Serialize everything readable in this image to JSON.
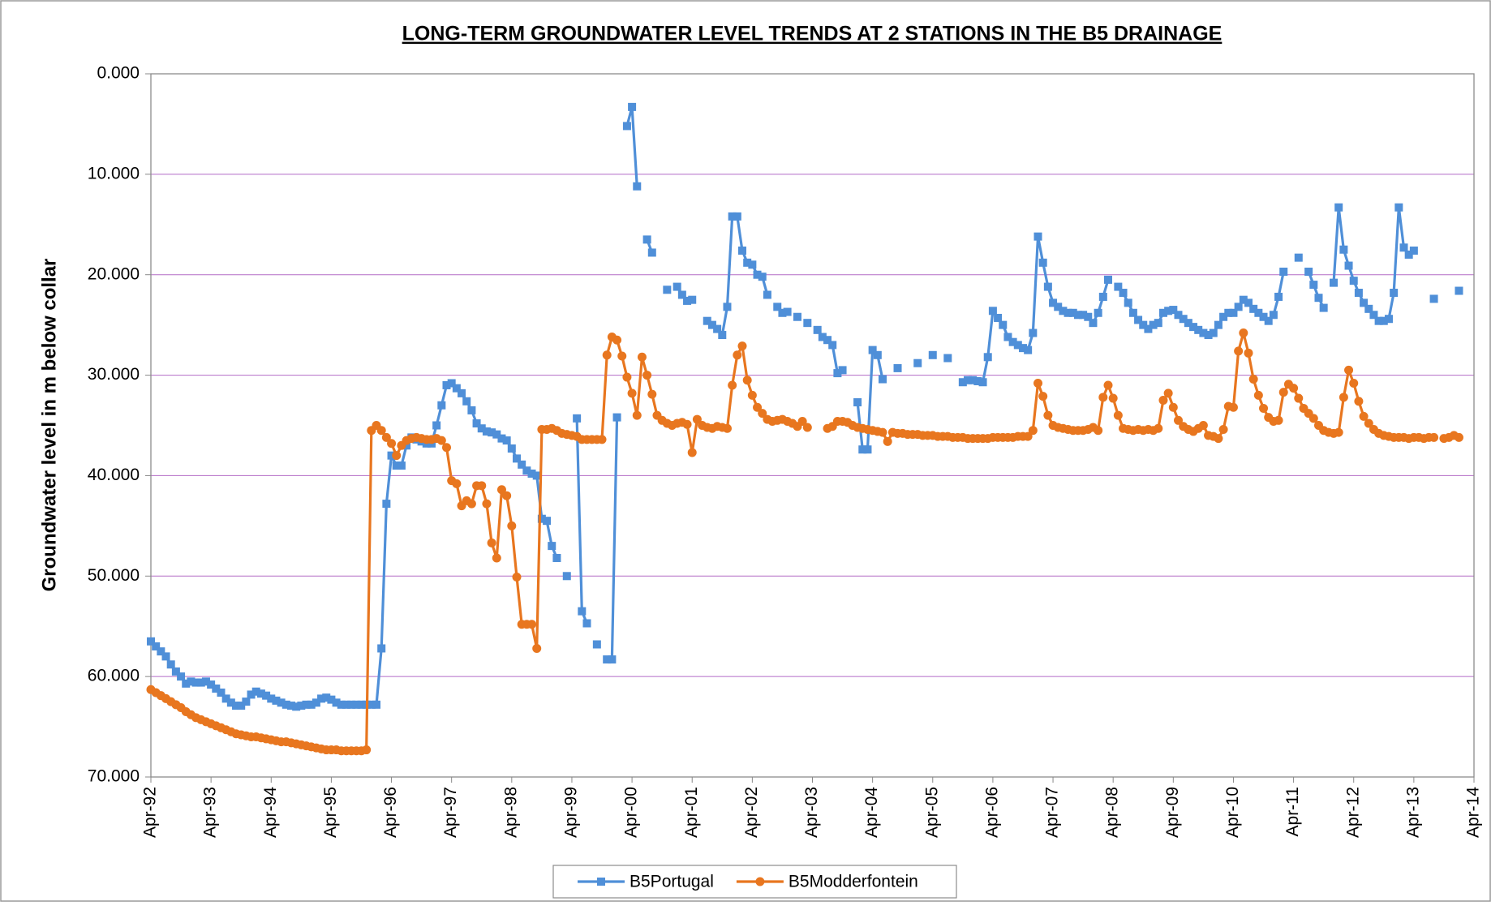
{
  "chart_data": {
    "type": "line",
    "title": "LONG-TERM GROUNDWATER LEVEL TRENDS AT 2 STATIONS IN THE B5 DRAINAGE",
    "y_label": "Groundwater level in m below collar",
    "x": [
      "1992-04",
      "1992-05",
      "1992-06",
      "1992-07",
      "1992-08",
      "1992-09",
      "1992-10",
      "1992-11",
      "1992-12",
      "1993-01",
      "1993-02",
      "1993-03",
      "1993-04",
      "1993-05",
      "1993-06",
      "1993-07",
      "1993-08",
      "1993-09",
      "1993-10",
      "1993-11",
      "1993-12",
      "1994-01",
      "1994-02",
      "1994-03",
      "1994-04",
      "1994-05",
      "1994-06",
      "1994-07",
      "1994-08",
      "1994-09",
      "1994-10",
      "1994-11",
      "1994-12",
      "1995-01",
      "1995-02",
      "1995-03",
      "1995-04",
      "1995-05",
      "1995-06",
      "1995-07",
      "1995-08",
      "1995-09",
      "1995-10",
      "1995-11",
      "1995-12",
      "1996-01",
      "1996-02",
      "1996-03",
      "1996-04",
      "1996-05",
      "1996-06",
      "1996-07",
      "1996-08",
      "1996-09",
      "1996-10",
      "1996-11",
      "1996-12",
      "1997-01",
      "1997-02",
      "1997-03",
      "1997-04",
      "1997-05",
      "1997-06",
      "1997-07",
      "1997-08",
      "1997-09",
      "1997-10",
      "1997-11",
      "1997-12",
      "1998-01",
      "1998-02",
      "1998-03",
      "1998-04",
      "1998-05",
      "1998-06",
      "1998-07",
      "1998-08",
      "1998-09",
      "1998-10",
      "1998-11",
      "1998-12",
      "1999-01",
      "1999-02",
      "1999-03",
      "1999-04",
      "1999-05",
      "1999-06",
      "1999-07",
      "1999-08",
      "1999-09",
      "1999-10",
      "1999-11",
      "1999-12",
      "2000-01",
      "2000-02",
      "2000-03",
      "2000-04",
      "2000-05",
      "2000-06",
      "2000-07",
      "2000-08",
      "2000-09",
      "2000-10",
      "2000-11",
      "2000-12",
      "2001-01",
      "2001-02",
      "2001-03",
      "2001-04",
      "2001-05",
      "2001-06",
      "2001-07",
      "2001-08",
      "2001-09",
      "2001-10",
      "2001-11",
      "2001-12",
      "2002-01",
      "2002-02",
      "2002-03",
      "2002-04",
      "2002-05",
      "2002-06",
      "2002-07",
      "2002-08",
      "2002-09",
      "2002-10",
      "2002-11",
      "2002-12",
      "2003-01",
      "2003-02",
      "2003-03",
      "2003-04",
      "2003-05",
      "2003-06",
      "2003-07",
      "2003-08",
      "2003-09",
      "2003-10",
      "2003-11",
      "2003-12",
      "2004-01",
      "2004-02",
      "2004-03",
      "2004-04",
      "2004-05",
      "2004-06",
      "2004-07",
      "2004-08",
      "2004-09",
      "2004-10",
      "2004-11",
      "2004-12",
      "2005-01",
      "2005-02",
      "2005-03",
      "2005-04",
      "2005-05",
      "2005-06",
      "2005-07",
      "2005-08",
      "2005-09",
      "2005-10",
      "2005-11",
      "2005-12",
      "2006-01",
      "2006-02",
      "2006-03",
      "2006-04",
      "2006-05",
      "2006-06",
      "2006-07",
      "2006-08",
      "2006-09",
      "2006-10",
      "2006-11",
      "2006-12",
      "2007-01",
      "2007-02",
      "2007-03",
      "2007-04",
      "2007-05",
      "2007-06",
      "2007-07",
      "2007-08",
      "2007-09",
      "2007-10",
      "2007-11",
      "2007-12",
      "2008-01",
      "2008-02",
      "2008-03",
      "2008-04",
      "2008-05",
      "2008-06",
      "2008-07",
      "2008-08",
      "2008-09",
      "2008-10",
      "2008-11",
      "2008-12",
      "2009-01",
      "2009-02",
      "2009-03",
      "2009-04",
      "2009-05",
      "2009-06",
      "2009-07",
      "2009-08",
      "2009-09",
      "2009-10",
      "2009-11",
      "2009-12",
      "2010-01",
      "2010-02",
      "2010-03",
      "2010-04",
      "2010-05",
      "2010-06",
      "2010-07",
      "2010-08",
      "2010-09",
      "2010-10",
      "2010-11",
      "2010-12",
      "2011-01",
      "2011-02",
      "2011-03",
      "2011-04",
      "2011-05",
      "2011-06",
      "2011-07",
      "2011-08",
      "2011-09",
      "2011-10",
      "2011-11",
      "2011-12",
      "2012-01",
      "2012-02",
      "2012-03",
      "2012-04",
      "2012-05",
      "2012-06",
      "2012-07",
      "2012-08",
      "2012-09",
      "2012-10",
      "2012-11",
      "2012-12",
      "2013-01",
      "2013-02",
      "2013-03",
      "2013-04",
      "2013-05",
      "2013-06",
      "2013-07",
      "2013-08",
      "2013-09",
      "2013-10",
      "2013-11",
      "2013-12",
      "2014-01"
    ],
    "series": [
      {
        "name": "B5Portugal",
        "color": "#4f8fd8",
        "marker": "square",
        "values": [
          56.5,
          57,
          57.5,
          58,
          58.8,
          59.5,
          60,
          60.7,
          60.5,
          60.6,
          60.6,
          60.5,
          60.8,
          61.2,
          61.6,
          62.2,
          62.6,
          62.9,
          62.9,
          62.5,
          61.8,
          61.5,
          61.7,
          61.9,
          62.2,
          62.4,
          62.6,
          62.8,
          62.9,
          63,
          62.9,
          62.8,
          62.8,
          62.6,
          62.2,
          62.1,
          62.3,
          62.6,
          62.8,
          62.8,
          62.8,
          62.8,
          62.8,
          62.8,
          62.8,
          62.8,
          57.2,
          42.8,
          38,
          39,
          39,
          37,
          36.2,
          36.4,
          36.6,
          36.8,
          36.8,
          35,
          33,
          31,
          30.8,
          31.3,
          31.8,
          32.6,
          33.5,
          34.8,
          35.3,
          35.6,
          35.7,
          35.9,
          36.3,
          36.5,
          37.3,
          38.3,
          38.9,
          39.5,
          39.8,
          40,
          44.3,
          44.5,
          47,
          48.2,
          null,
          50,
          null,
          34.3,
          53.5,
          54.7,
          null,
          56.8,
          null,
          58.3,
          58.3,
          34.2,
          null,
          5.2,
          3.3,
          11.2,
          null,
          16.5,
          17.8,
          null,
          null,
          21.5,
          null,
          21.2,
          22,
          22.6,
          22.5,
          null,
          null,
          24.6,
          25,
          25.4,
          26,
          23.2,
          14.2,
          14.2,
          17.6,
          18.8,
          19,
          20,
          20.2,
          22,
          null,
          23.2,
          23.8,
          23.7,
          null,
          24.2,
          null,
          24.8,
          null,
          25.5,
          26.2,
          26.5,
          27,
          29.8,
          29.5,
          null,
          null,
          32.7,
          37.4,
          37.4,
          27.5,
          28,
          30.4,
          null,
          null,
          29.3,
          null,
          null,
          null,
          28.8,
          null,
          null,
          28,
          null,
          null,
          28.3,
          null,
          null,
          30.7,
          30.5,
          30.5,
          30.6,
          30.7,
          28.2,
          23.6,
          24.3,
          25,
          26.2,
          26.7,
          27,
          27.3,
          27.5,
          25.8,
          16.2,
          18.8,
          21.2,
          22.8,
          23.2,
          23.6,
          23.8,
          23.8,
          24,
          24,
          24.2,
          24.8,
          23.8,
          22.2,
          20.5,
          null,
          21.2,
          21.8,
          22.8,
          23.8,
          24.5,
          25,
          25.4,
          25,
          24.8,
          23.8,
          23.6,
          23.5,
          24,
          24.4,
          24.8,
          25.2,
          25.5,
          25.8,
          26,
          25.8,
          25,
          24.2,
          23.8,
          23.8,
          23.2,
          22.5,
          22.8,
          23.4,
          23.8,
          24.2,
          24.6,
          24,
          22.2,
          19.7,
          null,
          null,
          18.3,
          null,
          19.7,
          21,
          22.3,
          23.3,
          null,
          20.8,
          13.3,
          17.5,
          19.1,
          20.6,
          21.8,
          22.8,
          23.4,
          24,
          24.6,
          24.6,
          24.4,
          21.8,
          13.3,
          17.3,
          18,
          17.6,
          null,
          null,
          null,
          22.4,
          null,
          null,
          null,
          null,
          21.6
        ]
      },
      {
        "name": "B5Modderfontein",
        "color": "#e8761f",
        "marker": "circle",
        "values": [
          61.3,
          61.6,
          61.9,
          62.2,
          62.5,
          62.8,
          63.1,
          63.5,
          63.8,
          64.1,
          64.3,
          64.5,
          64.7,
          64.9,
          65.1,
          65.3,
          65.5,
          65.7,
          65.8,
          65.9,
          66,
          66,
          66.1,
          66.2,
          66.3,
          66.4,
          66.5,
          66.5,
          66.6,
          66.7,
          66.8,
          66.9,
          67,
          67.1,
          67.2,
          67.3,
          67.3,
          67.3,
          67.4,
          67.4,
          67.4,
          67.4,
          67.4,
          67.3,
          35.5,
          35,
          35.5,
          36.2,
          36.8,
          38,
          37,
          36.5,
          36.3,
          36.2,
          36.3,
          36.4,
          36.4,
          36.3,
          36.5,
          37.2,
          40.5,
          40.8,
          43,
          42.5,
          42.8,
          41,
          41,
          42.8,
          46.7,
          48.2,
          41.4,
          42,
          45,
          50.1,
          54.8,
          54.8,
          54.8,
          57.2,
          35.4,
          35.4,
          35.3,
          35.5,
          35.8,
          35.9,
          36,
          36.1,
          36.4,
          36.4,
          36.4,
          36.4,
          36.4,
          28,
          26.2,
          26.5,
          28.1,
          30.2,
          31.8,
          34,
          28.2,
          30,
          31.9,
          34,
          34.5,
          34.8,
          35,
          34.8,
          34.7,
          34.9,
          37.7,
          34.4,
          35,
          35.2,
          35.3,
          35.1,
          35.2,
          35.3,
          31,
          28,
          27.1,
          30.5,
          32,
          33.2,
          33.8,
          34.4,
          34.6,
          34.5,
          34.4,
          34.6,
          34.8,
          35.1,
          34.6,
          35.2,
          null,
          null,
          null,
          35.3,
          35.1,
          34.6,
          34.6,
          34.7,
          35,
          35.2,
          35.3,
          35.4,
          35.5,
          35.6,
          35.7,
          36.6,
          35.7,
          35.8,
          35.8,
          35.9,
          35.9,
          35.9,
          36,
          36,
          36,
          36.1,
          36.1,
          36.1,
          36.2,
          36.2,
          36.2,
          36.3,
          36.3,
          36.3,
          36.3,
          36.3,
          36.2,
          36.2,
          36.2,
          36.2,
          36.2,
          36.1,
          36.1,
          36.1,
          35.5,
          30.8,
          32.1,
          34,
          35,
          35.2,
          35.3,
          35.4,
          35.5,
          35.5,
          35.5,
          35.4,
          35.2,
          35.5,
          32.2,
          31,
          32.3,
          34,
          35.3,
          35.4,
          35.5,
          35.4,
          35.5,
          35.4,
          35.5,
          35.3,
          32.5,
          31.8,
          33.2,
          34.5,
          35.1,
          35.4,
          35.6,
          35.3,
          35,
          36,
          36.1,
          36.3,
          35.4,
          33.1,
          33.2,
          27.6,
          25.8,
          27.8,
          30.4,
          32,
          33.3,
          34.2,
          34.6,
          34.5,
          31.7,
          30.9,
          31.3,
          32.3,
          33.3,
          33.8,
          34.3,
          35,
          35.5,
          35.7,
          35.8,
          35.7,
          32.2,
          29.5,
          30.8,
          32.6,
          34.1,
          34.8,
          35.4,
          35.8,
          36,
          36.1,
          36.2,
          36.2,
          36.2,
          36.3,
          36.2,
          36.2,
          36.3,
          36.2,
          36.2,
          null,
          36.3,
          36.2,
          36,
          36.2
        ]
      }
    ],
    "xlim": [
      "1992-04",
      "2014-04"
    ],
    "xticks": [
      {
        "value": "1992-04",
        "label": "Apr-92"
      },
      {
        "value": "1993-04",
        "label": "Apr-93"
      },
      {
        "value": "1994-04",
        "label": "Apr-94"
      },
      {
        "value": "1995-04",
        "label": "Apr-95"
      },
      {
        "value": "1996-04",
        "label": "Apr-96"
      },
      {
        "value": "1997-04",
        "label": "Apr-97"
      },
      {
        "value": "1998-04",
        "label": "Apr-98"
      },
      {
        "value": "1999-04",
        "label": "Apr-99"
      },
      {
        "value": "2000-04",
        "label": "Apr-00"
      },
      {
        "value": "2001-04",
        "label": "Apr-01"
      },
      {
        "value": "2002-04",
        "label": "Apr-02"
      },
      {
        "value": "2003-04",
        "label": "Apr-03"
      },
      {
        "value": "2004-04",
        "label": "Apr-04"
      },
      {
        "value": "2005-04",
        "label": "Apr-05"
      },
      {
        "value": "2006-04",
        "label": "Apr-06"
      },
      {
        "value": "2007-04",
        "label": "Apr-07"
      },
      {
        "value": "2008-04",
        "label": "Apr-08"
      },
      {
        "value": "2009-04",
        "label": "Apr-09"
      },
      {
        "value": "2010-04",
        "label": "Apr-10"
      },
      {
        "value": "2011-04",
        "label": "Apr-11"
      },
      {
        "value": "2012-04",
        "label": "Apr-12"
      },
      {
        "value": "2013-04",
        "label": "Apr-13"
      },
      {
        "value": "2014-04",
        "label": "Apr-14"
      }
    ],
    "ylim": [
      0,
      70
    ],
    "y_reversed": true,
    "yticks": [
      {
        "value": 0,
        "label": "0.000"
      },
      {
        "value": 10,
        "label": "10.000"
      },
      {
        "value": 20,
        "label": "20.000"
      },
      {
        "value": 30,
        "label": "30.000"
      },
      {
        "value": 40,
        "label": "40.000"
      },
      {
        "value": 50,
        "label": "50.000"
      },
      {
        "value": 60,
        "label": "60.000"
      },
      {
        "value": 70,
        "label": "70.000"
      }
    ],
    "grid": true,
    "grid_color": "#b36bc6",
    "legend": "bottom"
  }
}
